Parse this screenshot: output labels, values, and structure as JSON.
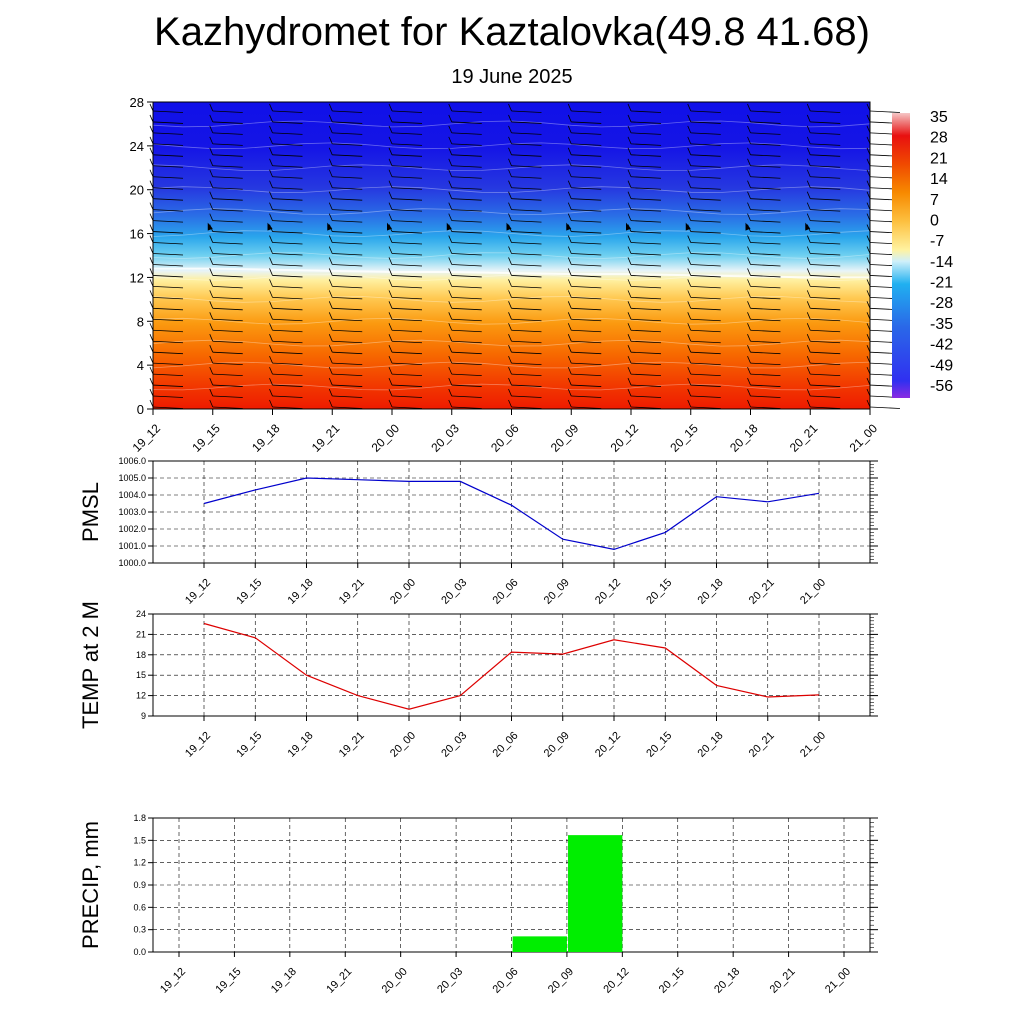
{
  "title": "Kazhydromet for Kaztalovka(49.8 41.68)",
  "subtitle": "19 June 2025",
  "chart_data": [
    {
      "type": "heatmap",
      "x_tick_labels": [
        "19_12",
        "19_15",
        "19_18",
        "19_21",
        "20_00",
        "20_03",
        "20_06",
        "20_09",
        "20_12",
        "20_15",
        "20_18",
        "20_21",
        "21_00"
      ],
      "y_ticks": [
        0,
        4,
        8,
        12,
        16,
        20,
        24,
        28
      ],
      "ylim": [
        0,
        28
      ],
      "colorbar_labels": [
        "35",
        "28",
        "21",
        "14",
        "7",
        "0",
        "-7",
        "-14",
        "-21",
        "-28",
        "-35",
        "-42",
        "-49",
        "-56"
      ],
      "colorbar_range": [
        -60,
        38
      ],
      "freezing_height": [
        12.8,
        12.8,
        12.7,
        12.6,
        12.5,
        12.5,
        12.4,
        12.3,
        12.3,
        12.2,
        12.1,
        12.0,
        12.0
      ],
      "colors": {
        "top": "#1010e6",
        "mid": "#ffe680",
        "bottom": "#ee1a00"
      }
    },
    {
      "type": "line",
      "ylabel": "PMSL",
      "x_tick_labels": [
        "19_12",
        "19_15",
        "19_18",
        "19_21",
        "20_00",
        "20_03",
        "20_06",
        "20_09",
        "20_12",
        "20_15",
        "20_18",
        "20_21",
        "21_00"
      ],
      "y_tick_labels": [
        "1000.0",
        "1001.0",
        "1002.0",
        "1003.0",
        "1004.0",
        "1005.0",
        "1006.0"
      ],
      "ylim": [
        1000,
        1006
      ],
      "values": [
        1003.5,
        1004.3,
        1005.0,
        1004.9,
        1004.8,
        1004.8,
        1003.4,
        1001.4,
        1000.8,
        1001.8,
        1003.9,
        1003.6,
        1004.1
      ],
      "color": "#0000cc"
    },
    {
      "type": "line",
      "ylabel": "TEMP at 2 M",
      "x_tick_labels": [
        "19_12",
        "19_15",
        "19_18",
        "19_21",
        "20_00",
        "20_03",
        "20_06",
        "20_09",
        "20_12",
        "20_15",
        "20_18",
        "20_21",
        "21_00"
      ],
      "y_tick_labels": [
        "9",
        "12",
        "15",
        "18",
        "21",
        "24"
      ],
      "ylim": [
        9,
        24
      ],
      "values": [
        22.6,
        20.5,
        15.0,
        12.0,
        10.0,
        12.0,
        18.4,
        18.1,
        20.2,
        19.0,
        13.5,
        11.8,
        12.1
      ],
      "color": "#dd0000"
    },
    {
      "type": "bar",
      "ylabel": "PRECIP, mm",
      "x_tick_labels": [
        "19_12",
        "19_15",
        "19_18",
        "19_21",
        "20_00",
        "20_03",
        "20_06",
        "20_09",
        "20_12",
        "20_15",
        "20_18",
        "20_21",
        "21_00"
      ],
      "y_tick_labels": [
        "0.0",
        "0.3",
        "0.6",
        "0.9",
        "1.2",
        "1.5",
        "1.8"
      ],
      "ylim": [
        0,
        1.8
      ],
      "values": [
        0,
        0,
        0,
        0,
        0,
        0,
        0,
        0.21,
        1.57,
        0,
        0,
        0,
        0
      ],
      "color": "#00ee00"
    }
  ]
}
